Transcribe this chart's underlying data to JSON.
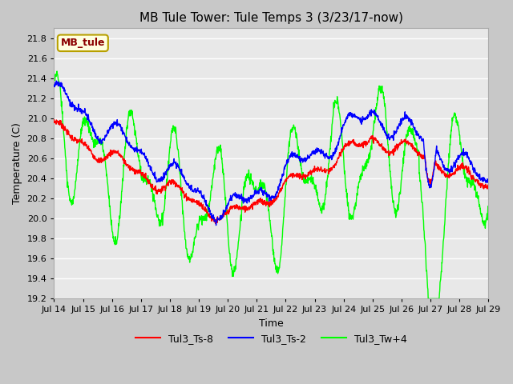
{
  "title": "MB Tule Tower: Tule Temps 3 (3/23/17-now)",
  "xlabel": "Time",
  "ylabel": "Temperature (C)",
  "ylim": [
    19.2,
    21.9
  ],
  "xlim": [
    0,
    15
  ],
  "xtick_labels": [
    "Jul 14",
    "Jul 15",
    "Jul 16",
    "Jul 17",
    "Jul 18",
    "Jul 19",
    "Jul 20",
    "Jul 21",
    "Jul 22",
    "Jul 23",
    "Jul 24",
    "Jul 25",
    "Jul 26",
    "Jul 27",
    "Jul 28",
    "Jul 29"
  ],
  "legend_labels": [
    "Tul3_Ts-8",
    "Tul3_Ts-2",
    "Tul3_Tw+4"
  ],
  "legend_colors": [
    "red",
    "blue",
    "lime"
  ],
  "watermark_text": "MB_tule",
  "plot_bg_color": "#e8e8e8",
  "fig_bg_color": "#c8c8c8",
  "title_fontsize": 11,
  "axis_fontsize": 9,
  "tick_fontsize": 8,
  "line_width": 1.0
}
